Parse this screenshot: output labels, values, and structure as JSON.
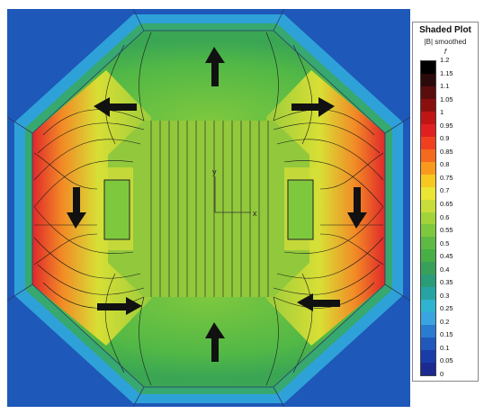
{
  "legend": {
    "title": "Shaded Plot",
    "subtitle": "|B| smoothed",
    "subtitle2": "f",
    "ticks": [
      "1.2",
      "1.15",
      "1.1",
      "1.05",
      "1",
      "0.95",
      "0.9",
      "0.85",
      "0.8",
      "0.75",
      "0.7",
      "0.65",
      "0.6",
      "0.55",
      "0.5",
      "0.45",
      "0.4",
      "0.35",
      "0.3",
      "0.25",
      "0.2",
      "0.15",
      "0.1",
      "0.05",
      "0"
    ],
    "colors": [
      "#000000",
      "#2a0a0a",
      "#5a0d0d",
      "#8a1010",
      "#c01515",
      "#e02020",
      "#f04020",
      "#f56a1e",
      "#f99a1e",
      "#f7c820",
      "#ebe533",
      "#c8dc3a",
      "#a2d43a",
      "#7ec83e",
      "#5eba42",
      "#48ae46",
      "#38a05a",
      "#2a9c78",
      "#26a4a4",
      "#2eb4d0",
      "#3aa4e0",
      "#2a7cd0",
      "#2058bc",
      "#1a3ca8",
      "#1a2a90"
    ]
  },
  "plot": {
    "axis_x_label": "x",
    "axis_y_label": "y",
    "arrow_count": 8
  }
}
